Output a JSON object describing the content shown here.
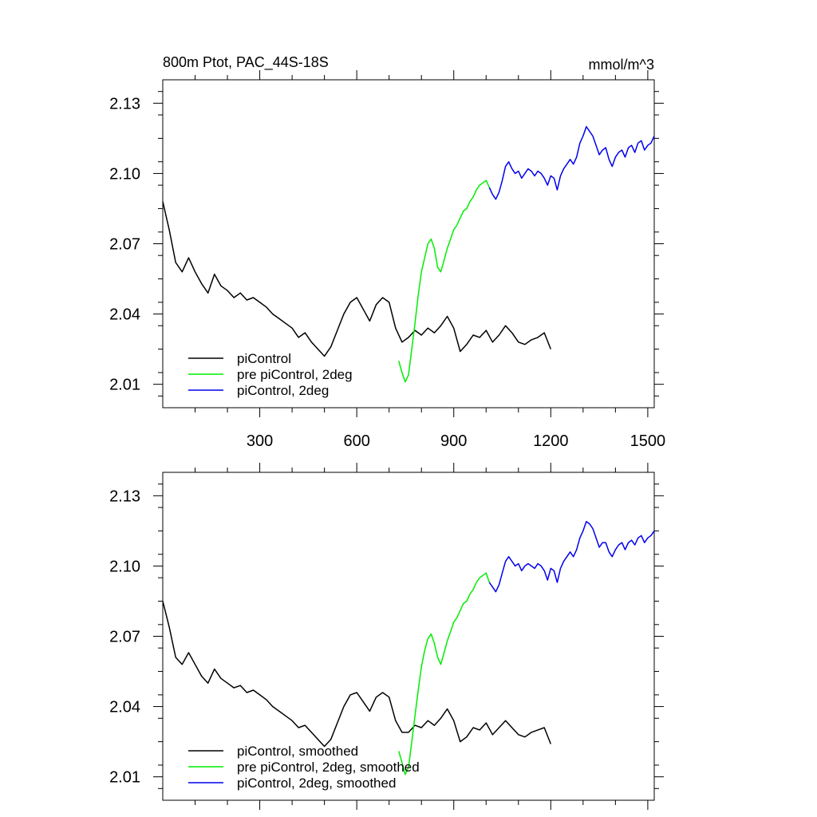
{
  "chart_data": [
    {
      "type": "line",
      "title": "800m Ptot, PAC_44S-18S",
      "units": "mmol/m^3",
      "xlim": [
        0,
        1520
      ],
      "ylim": [
        2.0,
        2.14
      ],
      "xticks": [
        300,
        600,
        900,
        1200,
        1500
      ],
      "yticks": [
        2.01,
        2.04,
        2.07,
        2.1,
        2.13
      ],
      "xtick_labels": [
        "300",
        "600",
        "900",
        "1200",
        "1500"
      ],
      "ytick_labels": [
        "2.01",
        "2.04",
        "2.07",
        "2.10",
        "2.13"
      ],
      "legend": {
        "placement": "bottom-left",
        "entries": [
          "piControl",
          "pre piControl, 2deg",
          "piControl, 2deg"
        ]
      },
      "series": [
        {
          "name": "piControl",
          "color": "#000000",
          "x": [
            0,
            20,
            40,
            60,
            80,
            100,
            120,
            140,
            160,
            180,
            200,
            220,
            240,
            260,
            280,
            300,
            320,
            340,
            360,
            380,
            400,
            420,
            440,
            460,
            480,
            500,
            520,
            540,
            560,
            580,
            600,
            620,
            640,
            660,
            680,
            700,
            720,
            740,
            760,
            780,
            800,
            820,
            840,
            860,
            880,
            900,
            920,
            940,
            960,
            980,
            1000,
            1020,
            1040,
            1060,
            1080,
            1100,
            1120,
            1140,
            1160,
            1180,
            1200
          ],
          "y": [
            2.088,
            2.076,
            2.062,
            2.058,
            2.064,
            2.058,
            2.053,
            2.049,
            2.057,
            2.052,
            2.05,
            2.047,
            2.049,
            2.046,
            2.047,
            2.045,
            2.043,
            2.04,
            2.038,
            2.036,
            2.034,
            2.03,
            2.032,
            2.028,
            2.025,
            2.022,
            2.026,
            2.033,
            2.04,
            2.045,
            2.047,
            2.042,
            2.037,
            2.044,
            2.047,
            2.045,
            2.034,
            2.028,
            2.03,
            2.033,
            2.031,
            2.034,
            2.032,
            2.035,
            2.039,
            2.034,
            2.024,
            2.027,
            2.031,
            2.03,
            2.033,
            2.028,
            2.031,
            2.035,
            2.032,
            2.028,
            2.027,
            2.029,
            2.03,
            2.032,
            2.025
          ]
        },
        {
          "name": "pre piControl, 2deg",
          "color": "#00ee00",
          "x": [
            730,
            740,
            750,
            760,
            770,
            780,
            790,
            800,
            810,
            820,
            830,
            840,
            850,
            860,
            870,
            880,
            890,
            900,
            910,
            920,
            930,
            940,
            950,
            960,
            970,
            980,
            990,
            1000,
            1010
          ],
          "y": [
            2.02,
            2.015,
            2.011,
            2.014,
            2.025,
            2.036,
            2.048,
            2.058,
            2.064,
            2.07,
            2.072,
            2.068,
            2.06,
            2.058,
            2.063,
            2.068,
            2.072,
            2.076,
            2.078,
            2.081,
            2.084,
            2.085,
            2.088,
            2.09,
            2.093,
            2.095,
            2.096,
            2.097,
            2.094
          ]
        },
        {
          "name": "piControl, 2deg",
          "color": "#0000ee",
          "x": [
            1010,
            1020,
            1030,
            1040,
            1050,
            1060,
            1070,
            1080,
            1090,
            1100,
            1110,
            1120,
            1130,
            1140,
            1150,
            1160,
            1170,
            1180,
            1190,
            1200,
            1210,
            1220,
            1230,
            1240,
            1250,
            1260,
            1270,
            1280,
            1290,
            1300,
            1310,
            1320,
            1330,
            1340,
            1350,
            1360,
            1370,
            1380,
            1390,
            1400,
            1410,
            1420,
            1430,
            1440,
            1450,
            1460,
            1470,
            1480,
            1490,
            1500,
            1510,
            1520
          ],
          "y": [
            2.094,
            2.091,
            2.089,
            2.092,
            2.097,
            2.103,
            2.105,
            2.102,
            2.1,
            2.101,
            2.098,
            2.1,
            2.102,
            2.101,
            2.099,
            2.101,
            2.1,
            2.098,
            2.095,
            2.099,
            2.098,
            2.093,
            2.099,
            2.102,
            2.104,
            2.106,
            2.104,
            2.107,
            2.113,
            2.116,
            2.12,
            2.118,
            2.116,
            2.112,
            2.108,
            2.11,
            2.111,
            2.106,
            2.103,
            2.107,
            2.109,
            2.11,
            2.107,
            2.111,
            2.112,
            2.109,
            2.113,
            2.114,
            2.11,
            2.112,
            2.113,
            2.116
          ]
        }
      ]
    },
    {
      "type": "line",
      "title": "",
      "units": "",
      "xlim": [
        0,
        1520
      ],
      "ylim": [
        2.0,
        2.14
      ],
      "xticks": [
        300,
        600,
        900,
        1200,
        1500
      ],
      "yticks": [
        2.01,
        2.04,
        2.07,
        2.1,
        2.13
      ],
      "xtick_labels": [],
      "ytick_labels": [
        "2.01",
        "2.04",
        "2.07",
        "2.10",
        "2.13"
      ],
      "legend": {
        "placement": "bottom-left",
        "entries": [
          "piControl, smoothed",
          "pre piControl, 2deg, smoothed",
          "piControl, 2deg, smoothed"
        ]
      },
      "series": [
        {
          "name": "piControl, smoothed",
          "color": "#000000",
          "x": [
            0,
            20,
            40,
            60,
            80,
            100,
            120,
            140,
            160,
            180,
            200,
            220,
            240,
            260,
            280,
            300,
            320,
            340,
            360,
            380,
            400,
            420,
            440,
            460,
            480,
            500,
            520,
            540,
            560,
            580,
            600,
            620,
            640,
            660,
            680,
            700,
            720,
            740,
            760,
            780,
            800,
            820,
            840,
            860,
            880,
            900,
            920,
            940,
            960,
            980,
            1000,
            1020,
            1040,
            1060,
            1080,
            1100,
            1120,
            1140,
            1160,
            1180,
            1200
          ],
          "y": [
            2.085,
            2.074,
            2.061,
            2.058,
            2.063,
            2.058,
            2.053,
            2.05,
            2.056,
            2.052,
            2.05,
            2.048,
            2.049,
            2.046,
            2.047,
            2.045,
            2.043,
            2.04,
            2.038,
            2.036,
            2.034,
            2.031,
            2.032,
            2.029,
            2.026,
            2.023,
            2.026,
            2.033,
            2.04,
            2.045,
            2.046,
            2.042,
            2.038,
            2.044,
            2.046,
            2.044,
            2.034,
            2.029,
            2.029,
            2.032,
            2.031,
            2.034,
            2.032,
            2.035,
            2.039,
            2.034,
            2.025,
            2.027,
            2.031,
            2.03,
            2.033,
            2.028,
            2.031,
            2.034,
            2.031,
            2.028,
            2.027,
            2.029,
            2.03,
            2.031,
            2.024
          ]
        },
        {
          "name": "pre piControl, 2deg, smoothed",
          "color": "#00ee00",
          "x": [
            730,
            740,
            750,
            760,
            770,
            780,
            790,
            800,
            810,
            820,
            830,
            840,
            850,
            860,
            870,
            880,
            890,
            900,
            910,
            920,
            930,
            940,
            950,
            960,
            970,
            980,
            990,
            1000,
            1010
          ],
          "y": [
            2.021,
            2.016,
            2.011,
            2.014,
            2.025,
            2.036,
            2.047,
            2.057,
            2.064,
            2.069,
            2.071,
            2.067,
            2.061,
            2.058,
            2.063,
            2.068,
            2.072,
            2.076,
            2.078,
            2.081,
            2.084,
            2.085,
            2.088,
            2.09,
            2.093,
            2.095,
            2.096,
            2.097,
            2.093
          ]
        },
        {
          "name": "piControl, 2deg, smoothed",
          "color": "#0000ee",
          "x": [
            1010,
            1020,
            1030,
            1040,
            1050,
            1060,
            1070,
            1080,
            1090,
            1100,
            1110,
            1120,
            1130,
            1140,
            1150,
            1160,
            1170,
            1180,
            1190,
            1200,
            1210,
            1220,
            1230,
            1240,
            1250,
            1260,
            1270,
            1280,
            1290,
            1300,
            1310,
            1320,
            1330,
            1340,
            1350,
            1360,
            1370,
            1380,
            1390,
            1400,
            1410,
            1420,
            1430,
            1440,
            1450,
            1460,
            1470,
            1480,
            1490,
            1500,
            1510,
            1520
          ],
          "y": [
            2.093,
            2.091,
            2.089,
            2.092,
            2.097,
            2.102,
            2.104,
            2.102,
            2.1,
            2.101,
            2.098,
            2.1,
            2.101,
            2.1,
            2.099,
            2.101,
            2.1,
            2.098,
            2.094,
            2.099,
            2.098,
            2.093,
            2.099,
            2.102,
            2.104,
            2.106,
            2.104,
            2.107,
            2.112,
            2.115,
            2.119,
            2.118,
            2.116,
            2.112,
            2.108,
            2.11,
            2.11,
            2.106,
            2.104,
            2.107,
            2.109,
            2.11,
            2.107,
            2.11,
            2.111,
            2.109,
            2.112,
            2.113,
            2.11,
            2.112,
            2.113,
            2.115
          ]
        }
      ]
    }
  ]
}
